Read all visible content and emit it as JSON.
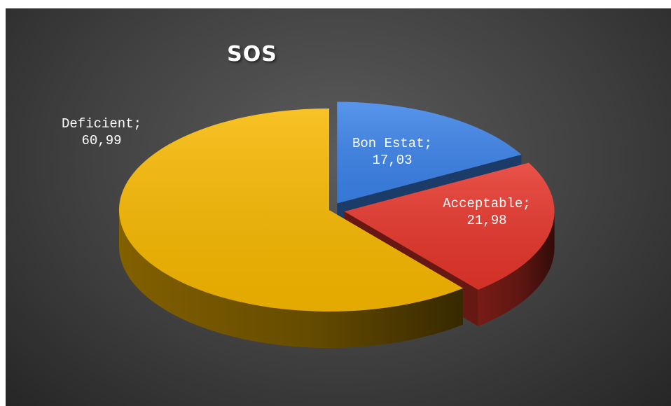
{
  "chart_data": {
    "type": "pie",
    "title": "SOS",
    "slices": [
      {
        "label": "Bon Estat",
        "value": 17.03,
        "value_text": "17,03",
        "color": "#3b82e8"
      },
      {
        "label": "Acceptable",
        "value": 21.98,
        "value_text": "21,98",
        "color": "#e5352a"
      },
      {
        "label": "Deficient",
        "value": 60.99,
        "value_text": "60,99",
        "color": "#f7b800"
      }
    ],
    "label_separator": ";",
    "style": "3d-exploded",
    "background": "#404040"
  }
}
